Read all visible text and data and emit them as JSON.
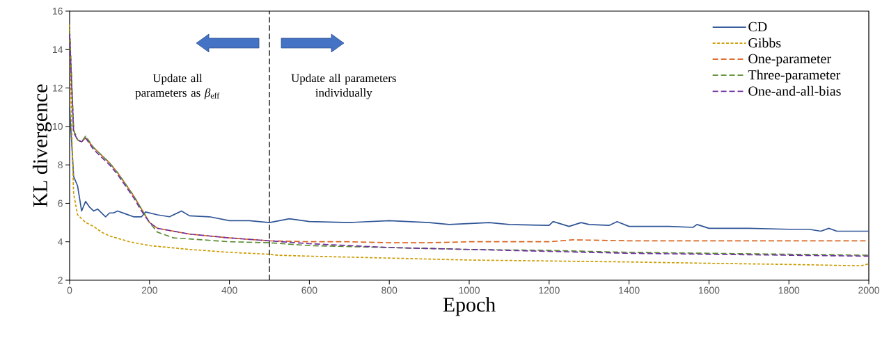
{
  "chart_data": {
    "type": "line",
    "xlabel": "Epoch",
    "ylabel": "KL divergence",
    "xlim": [
      0,
      2000
    ],
    "ylim": [
      2,
      16
    ],
    "xticks": [
      0,
      200,
      400,
      600,
      800,
      1000,
      1200,
      1400,
      1600,
      1800,
      2000
    ],
    "yticks": [
      2,
      4,
      6,
      8,
      10,
      12,
      14,
      16
    ],
    "legend": "top right",
    "annotations": [
      "Update all parameters as *β*$_{eff}$",
      "Update all parameters individually"
    ],
    "ref_lines": [
      {
        "axis": "x",
        "value": 500,
        "color": "#000000",
        "line_style": "dashed"
      }
    ],
    "series": [
      {
        "name": "CD",
        "color": "#2f5597",
        "line_style": "solid",
        "x": [
          0,
          10,
          20,
          30,
          40,
          50,
          60,
          70,
          90,
          100,
          110,
          120,
          140,
          160,
          180,
          190,
          220,
          250,
          280,
          300,
          350,
          400,
          450,
          500,
          550,
          600,
          700,
          800,
          900,
          950,
          1000,
          1050,
          1100,
          1200,
          1210,
          1250,
          1280,
          1300,
          1350,
          1370,
          1400,
          1500,
          1560,
          1570,
          1600,
          1700,
          1800,
          1850,
          1880,
          1900,
          1920,
          2000
        ],
        "values": [
          11.0,
          7.4,
          6.9,
          5.6,
          6.1,
          5.8,
          5.6,
          5.7,
          5.3,
          5.5,
          5.5,
          5.6,
          5.45,
          5.3,
          5.3,
          5.55,
          5.4,
          5.3,
          5.6,
          5.35,
          5.3,
          5.1,
          5.1,
          5.0,
          5.2,
          5.05,
          5.0,
          5.1,
          5.0,
          4.9,
          4.95,
          5.0,
          4.9,
          4.85,
          5.05,
          4.8,
          5.0,
          4.9,
          4.85,
          5.05,
          4.8,
          4.8,
          4.75,
          4.9,
          4.7,
          4.7,
          4.65,
          4.65,
          4.55,
          4.7,
          4.55,
          4.55
        ]
      },
      {
        "name": "Gibbs",
        "color": "#cc9c00",
        "line_style": "dotted",
        "x": [
          0,
          5,
          10,
          20,
          40,
          60,
          80,
          100,
          150,
          200,
          300,
          400,
          500,
          520,
          600,
          800,
          1000,
          1200,
          1400,
          1600,
          1800,
          1980,
          2000
        ],
        "values": [
          15.3,
          10.0,
          6.5,
          5.4,
          5.0,
          4.8,
          4.5,
          4.3,
          4.0,
          3.8,
          3.6,
          3.45,
          3.35,
          3.3,
          3.25,
          3.15,
          3.05,
          3.0,
          2.95,
          2.88,
          2.82,
          2.75,
          2.85
        ]
      },
      {
        "name": "One-parameter",
        "color": "#d9641e",
        "line_style": "dashed",
        "x": [
          0,
          10,
          20,
          30,
          40,
          60,
          80,
          100,
          120,
          140,
          160,
          180,
          200,
          220,
          300,
          400,
          500,
          600,
          700,
          800,
          900,
          1000,
          1200,
          1260,
          1400,
          1600,
          1800,
          2000
        ],
        "values": [
          15.0,
          9.8,
          9.3,
          9.2,
          9.4,
          8.9,
          8.5,
          8.1,
          7.6,
          7.0,
          6.4,
          5.7,
          5.0,
          4.7,
          4.4,
          4.2,
          4.05,
          4.0,
          4.0,
          3.95,
          3.95,
          4.0,
          4.0,
          4.1,
          4.05,
          4.05,
          4.05,
          4.05
        ]
      },
      {
        "name": "Three-parameter",
        "color": "#5b8c32",
        "line_style": "dashed",
        "x": [
          0,
          10,
          20,
          30,
          40,
          60,
          80,
          100,
          120,
          140,
          160,
          180,
          200,
          220,
          260,
          300,
          400,
          500,
          600,
          700,
          800,
          1000,
          1200,
          1400,
          1600,
          1800,
          2000
        ],
        "values": [
          15.0,
          9.8,
          9.3,
          9.2,
          9.5,
          8.9,
          8.5,
          8.1,
          7.6,
          7.0,
          6.4,
          5.7,
          5.0,
          4.5,
          4.2,
          4.15,
          4.0,
          3.95,
          3.8,
          3.75,
          3.7,
          3.6,
          3.55,
          3.45,
          3.4,
          3.35,
          3.3
        ]
      },
      {
        "name": "One-and-all-bias",
        "color": "#7030a0",
        "line_style": "dashed",
        "x": [
          0,
          10,
          20,
          30,
          40,
          60,
          80,
          100,
          120,
          140,
          160,
          180,
          200,
          220,
          300,
          400,
          500,
          600,
          800,
          1000,
          1200,
          1400,
          1600,
          1800,
          2000
        ],
        "values": [
          14.8,
          9.7,
          9.3,
          9.2,
          9.4,
          8.8,
          8.4,
          8.0,
          7.5,
          6.9,
          6.3,
          5.6,
          5.0,
          4.7,
          4.4,
          4.2,
          4.05,
          3.9,
          3.7,
          3.6,
          3.5,
          3.4,
          3.35,
          3.3,
          3.25
        ]
      }
    ]
  }
}
